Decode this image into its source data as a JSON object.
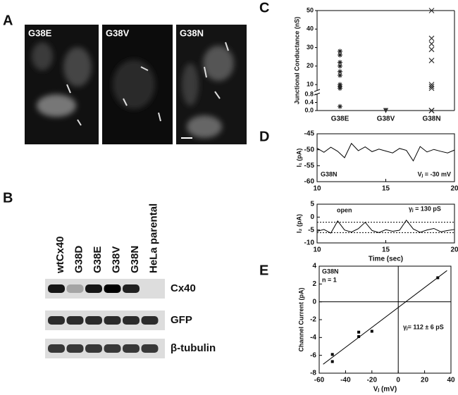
{
  "panel_labels": [
    "A",
    "B",
    "C",
    "D",
    "E"
  ],
  "micrographs": [
    "G38E",
    "G38V",
    "G38N"
  ],
  "western_blot": {
    "lanes": [
      "wtCx40",
      "G38D",
      "G38E",
      "G38V",
      "G38N",
      "HeLa parental"
    ],
    "rows": [
      "Cx40",
      "GFP",
      "β-tubulin"
    ]
  },
  "chart_data": [
    {
      "type": "strip",
      "y_label": "Junctional Conductance (nS)",
      "categories": [
        "G38E",
        "G38V",
        "G38N"
      ],
      "markers": [
        "asterisk",
        "triangle",
        "cross"
      ],
      "values": [
        [
          28,
          26,
          22,
          20,
          17,
          15,
          10,
          9,
          8,
          0.2
        ],
        [
          0,
          0,
          0
        ],
        [
          50,
          35,
          32,
          29,
          23,
          10,
          9,
          8,
          0,
          0,
          0,
          0
        ]
      ],
      "segments": [
        {
          "ylim": [
            0,
            0.8
          ],
          "yticks": [
            {
              "value": 0,
              "label": "0.0"
            },
            0.4,
            0.8
          ]
        },
        {
          "ylim": [
            7,
            50
          ],
          "yticks": [
            10,
            20,
            30,
            40,
            50
          ]
        }
      ]
    },
    {
      "type": "line",
      "y_label": "I₁ (pA)",
      "x": [
        10,
        10.5,
        11,
        11.5,
        12,
        12.5,
        13,
        13.5,
        14,
        14.5,
        15,
        15.5,
        16,
        16.5,
        17,
        17.5,
        18,
        18.5,
        19,
        19.5,
        20
      ],
      "values": [
        -49.5,
        -50.8,
        -49.2,
        -50.5,
        -52.5,
        -48.0,
        -50.3,
        -49.1,
        -50.6,
        -49.8,
        -50.4,
        -51.0,
        -49.6,
        -50.2,
        -53.5,
        -49.0,
        -50.7,
        -49.9,
        -50.5,
        -51.0,
        -50.1
      ],
      "xlim": [
        10,
        20
      ],
      "xticks": [
        10,
        15,
        20
      ],
      "ylim": [
        -60,
        -45
      ],
      "yticks": [
        -45,
        -50,
        -55,
        -60
      ],
      "annotations": [
        "G38N",
        "Vⱼ = -30 mV"
      ]
    },
    {
      "type": "line",
      "y_label": "I₂ (pA)",
      "x_label": "Time (sec)",
      "x": [
        10,
        10.5,
        11,
        11.5,
        12,
        12.5,
        13,
        13.5,
        14,
        14.5,
        15,
        15.5,
        16,
        16.5,
        17,
        17.5,
        18,
        18.5,
        19,
        19.5,
        20
      ],
      "values": [
        -5.5,
        -4.8,
        -6.2,
        -1.5,
        -5.0,
        -5.8,
        -4.5,
        -2.0,
        -5.2,
        -6.0,
        -4.9,
        -5.5,
        -5.1,
        -1.2,
        -4.6,
        -5.9,
        -5.0,
        -4.4,
        -5.7,
        -5.2,
        -4.8
      ],
      "levels": [
        -2,
        -6
      ],
      "xlim": [
        10,
        20
      ],
      "xticks": [
        10,
        15,
        20
      ],
      "ylim": [
        -10,
        5
      ],
      "yticks": [
        5,
        0,
        -5,
        -10
      ],
      "annotations": [
        "open",
        "γⱼ = 130 pS"
      ]
    },
    {
      "type": "scatter",
      "y_label": "Channel Current (pA)",
      "x_label": "Vⱼ (mV)",
      "x": [
        -50,
        -50,
        -30,
        -30,
        -20,
        30
      ],
      "values": [
        -5.9,
        -6.7,
        -3.4,
        -3.9,
        -3.3,
        2.7
      ],
      "fit_line": {
        "x": [
          -57,
          37
        ],
        "values": [
          -7,
          3.5
        ]
      },
      "xlim": [
        -60,
        40
      ],
      "xticks": [
        -60,
        -40,
        -20,
        0,
        20,
        40
      ],
      "ylim": [
        -8,
        4
      ],
      "yticks": [
        -8,
        -6,
        -4,
        -2,
        0,
        2,
        4
      ],
      "annotations": [
        "G38N",
        "n = 1",
        "γⱼ= 112 ± 6 pS"
      ]
    }
  ]
}
